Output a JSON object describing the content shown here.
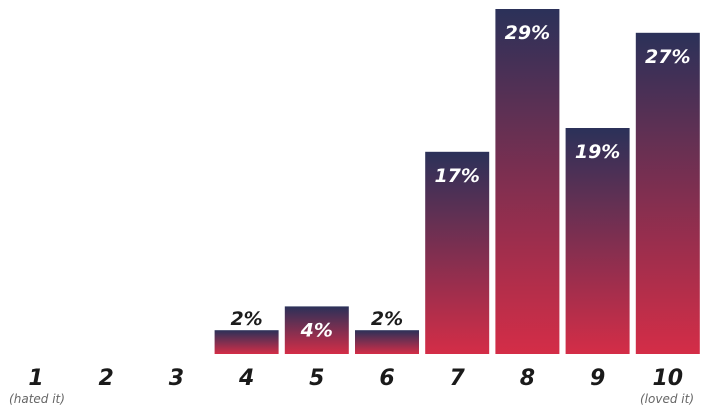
{
  "chart_data": {
    "type": "bar",
    "categories": [
      "1",
      "2",
      "3",
      "4",
      "5",
      "6",
      "7",
      "8",
      "9",
      "10"
    ],
    "values": [
      0,
      0,
      0,
      2,
      4,
      2,
      17,
      29,
      19,
      27
    ],
    "value_labels": [
      "",
      "",
      "",
      "2%",
      "4%",
      "2%",
      "17%",
      "29%",
      "19%",
      "27%"
    ],
    "annotations": {
      "low_end": "(hated it)",
      "high_end": "(loved it)"
    },
    "ylim": [
      0,
      29
    ],
    "grid": false,
    "colors": {
      "bar_top": "#2b3159",
      "bar_bottom": "#d42d47"
    }
  }
}
